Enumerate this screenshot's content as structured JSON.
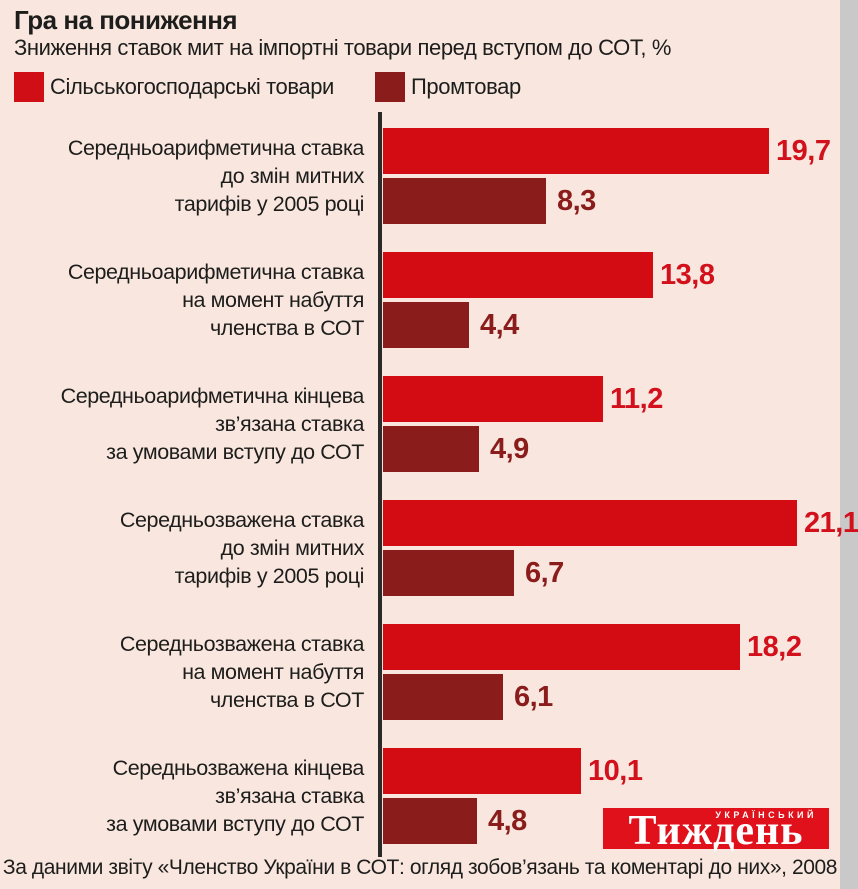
{
  "header": {
    "title": "Гра на пониження",
    "subtitle": "Зниження ставок мит на імпортні товари перед вступом до СОТ, %"
  },
  "legend": [
    {
      "label": "Сільськогосподарські товари",
      "color": "#cf0e15"
    },
    {
      "label": "Промтовар",
      "color": "#8a1d1b"
    }
  ],
  "chart_data": {
    "type": "bar",
    "orientation": "horizontal",
    "unit": "%",
    "xlim": [
      0,
      21.1
    ],
    "grid": false,
    "legend_position": "top",
    "value_decimal_separator": ",",
    "categories": [
      "Середньоарифметична ставка до змін митних тарифів у 2005 році",
      "Середньоарифметична ставка на момент набуття членства в СОТ",
      "Середньоарифметична кінцева зв’язана ставка за умовами вступу до СОТ",
      "Середньозважена ставка до змін митних тарифів у 2005 році",
      "Середньозважена ставка на момент набуття членства в СОТ",
      "Середньозважена кінцева зв’язана ставка за умовами вступу до СОТ"
    ],
    "category_lines": [
      [
        "Середньоарифметична ставка",
        "до змін митних",
        "тарифів у 2005 році"
      ],
      [
        "Середньоарифметична ставка",
        "на момент набуття",
        "членства в СОТ"
      ],
      [
        "Середньоарифметична кінцева",
        "зв’язана ставка",
        "за умовами вступу до СОТ"
      ],
      [
        "Середньозважена ставка",
        "до змін митних",
        "тарифів у 2005 році"
      ],
      [
        "Середньозважена ставка",
        "на момент набуття",
        "членства в СОТ"
      ],
      [
        "Середньозважена кінцева",
        "зв’язана ставка",
        "за умовами вступу до СОТ"
      ]
    ],
    "series": [
      {
        "name": "Сільськогосподарські товари",
        "color": "#d20c12",
        "values": [
          19.7,
          13.8,
          11.2,
          21.1,
          18.2,
          10.1
        ]
      },
      {
        "name": "Промтовар",
        "color": "#8a1d1b",
        "values": [
          8.3,
          4.4,
          4.9,
          6.7,
          6.1,
          4.8
        ]
      }
    ]
  },
  "logo": {
    "top": "УКРАЇНСЬКИЙ",
    "main": "Тиждень",
    "color": "#e0111a"
  },
  "footer": {
    "source": "За даними звіту «Членство України в СОТ: огляд зобов’язань та коментарі до них», 2008"
  }
}
